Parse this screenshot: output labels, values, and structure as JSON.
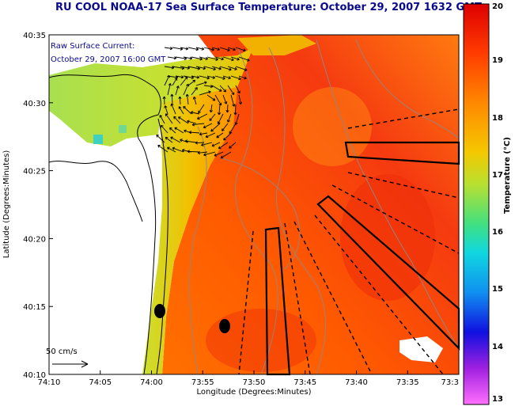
{
  "title": "RU COOL  NOAA-17  Sea Surface Temperature:  October 29, 2007 1632 GMT",
  "current_legend": {
    "line1": "Raw Surface Current:",
    "line2": "October 29, 2007 16:00 GMT"
  },
  "scale_arrow_label": "50 cm/s",
  "axes": {
    "xlabel": "Longitude (Degrees:Minutes)",
    "ylabel": "Latitude (Degrees:Minutes)",
    "xticks": [
      "74:10",
      "74:05",
      "74:00",
      "73:55",
      "73:50",
      "73:45",
      "73:40",
      "73:35",
      "73:3"
    ],
    "yticks": [
      "40:35",
      "40:30",
      "40:25",
      "40:20",
      "40:15",
      "40:10"
    ]
  },
  "colorbar": {
    "title": "Temperature (°C)",
    "min": 13,
    "max": 20,
    "ticks": [
      "20",
      "19",
      "18",
      "17",
      "16",
      "15",
      "14",
      "13"
    ],
    "colors": [
      "#e00000",
      "#ff3a00",
      "#ff8000",
      "#f2c000",
      "#c9e020",
      "#60e070",
      "#10d8d0",
      "#1090f0",
      "#1010e0",
      "#a020e0",
      "#ff60ff"
    ]
  },
  "colors": {
    "title": "#0a0a8c",
    "land": "#ffffff"
  }
}
